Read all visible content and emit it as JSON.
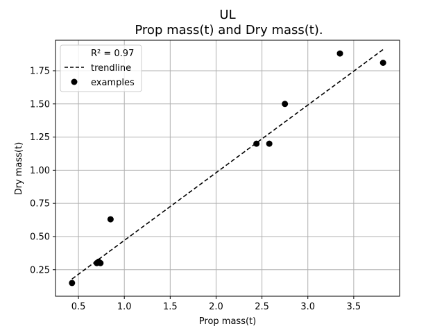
{
  "chart_data": {
    "type": "scatter",
    "title": "UL",
    "subtitle": "Prop mass(t) and Dry mass(t).",
    "xlabel": "Prop mass(t)",
    "ylabel": "Dry mass(t)",
    "xlim": [
      0.25,
      4.0
    ],
    "ylim": [
      0.05,
      1.98
    ],
    "xticks": [
      0.5,
      1.0,
      1.5,
      2.0,
      2.5,
      3.0,
      3.5
    ],
    "xtick_labels": [
      "0.5",
      "1.0",
      "1.5",
      "2.0",
      "2.5",
      "3.0",
      "3.5"
    ],
    "yticks": [
      0.25,
      0.5,
      0.75,
      1.0,
      1.25,
      1.5,
      1.75
    ],
    "ytick_labels": [
      "0.25",
      "0.50",
      "0.75",
      "1.00",
      "1.25",
      "1.50",
      "1.75"
    ],
    "grid": true,
    "legend_position": "top-left",
    "legend": {
      "annotation": "R² = 0.97",
      "trend_label": "trendline",
      "points_label": "examples"
    },
    "series": [
      {
        "name": "examples",
        "color": "#000000",
        "x": [
          0.43,
          0.7,
          0.72,
          0.74,
          0.85,
          2.44,
          2.58,
          2.75,
          3.35,
          3.82
        ],
        "y": [
          0.15,
          0.3,
          0.31,
          0.3,
          0.63,
          1.2,
          1.2,
          1.5,
          1.88,
          1.81
        ]
      }
    ],
    "trendline": {
      "name": "trendline",
      "style": "dashed",
      "color": "#000000",
      "x": [
        0.43,
        3.82
      ],
      "y": [
        0.18,
        1.91
      ]
    }
  }
}
